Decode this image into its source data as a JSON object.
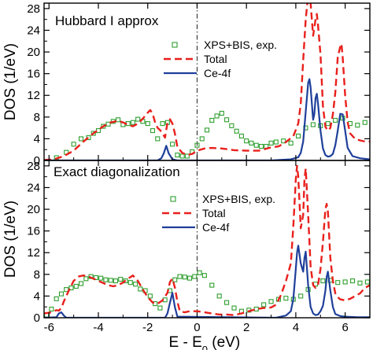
{
  "colors": {
    "exp": "#2e9e2e",
    "total": "#e8201c",
    "ce4f": "#1f3f9a"
  },
  "chart_data": [
    {
      "type": "line",
      "title": "Hubbard I approx",
      "xlabel": "E - E0 (eV)",
      "ylabel": "DOS (1/eV)",
      "xlim": [
        -6.2,
        7.0
      ],
      "ylim": [
        0,
        29
      ],
      "legend": [
        "XPS+BIS, exp.",
        "Total",
        "Ce-4f"
      ],
      "legend_position": "right",
      "series": [
        {
          "name": "XPS+BIS, exp.",
          "style": "open-square",
          "x": [
            -5.7,
            -5.3,
            -5.0,
            -4.7,
            -4.4,
            -4.2,
            -4.0,
            -3.8,
            -3.6,
            -3.4,
            -3.2,
            -3.0,
            -2.8,
            -2.6,
            -2.4,
            -2.2,
            -2.0,
            -1.8,
            -1.6,
            -1.4,
            -1.2,
            -1.0,
            -0.8,
            -0.6,
            -0.4,
            -0.2,
            0.0,
            0.2,
            0.4,
            0.6,
            0.8,
            1.0,
            1.2,
            1.4,
            1.6,
            1.8,
            2.0,
            2.2,
            2.4,
            2.6,
            2.8,
            3.0,
            3.2,
            3.5,
            3.8,
            4.1,
            4.4,
            4.7,
            5.0,
            5.3,
            5.6,
            5.9,
            6.2,
            6.5,
            6.8
          ],
          "y": [
            0.5,
            1.5,
            3.0,
            4.0,
            4.2,
            5.0,
            5.5,
            6.3,
            6.7,
            7.2,
            7.5,
            6.6,
            6.8,
            7.0,
            7.6,
            7.2,
            6.8,
            5.5,
            4.0,
            6.8,
            7.0,
            3.0,
            1.0,
            0.8,
            0.8,
            1.6,
            2.8,
            4.0,
            5.6,
            7.4,
            8.2,
            8.7,
            7.5,
            6.4,
            5.4,
            4.5,
            3.6,
            3.2,
            2.8,
            2.6,
            2.6,
            3.2,
            3.4,
            3.6,
            3.2,
            4.5,
            6.0,
            6.6,
            6.4,
            6.8,
            7.4,
            7.8,
            6.8,
            6.5,
            7.0
          ]
        },
        {
          "name": "Total",
          "style": "dashed",
          "x": [
            -6.2,
            -5.8,
            -5.4,
            -5.0,
            -4.6,
            -4.2,
            -3.8,
            -3.5,
            -3.2,
            -3.0,
            -2.8,
            -2.6,
            -2.4,
            -2.2,
            -2.0,
            -1.9,
            -1.8,
            -1.7,
            -1.6,
            -1.5,
            -1.4,
            -1.3,
            -1.2,
            -1.1,
            -1.0,
            -0.9,
            -0.8,
            -0.6,
            -0.4,
            -0.2,
            0.0,
            0.3,
            0.6,
            1.0,
            1.5,
            2.0,
            2.5,
            3.0,
            3.3,
            3.6,
            3.9,
            4.1,
            4.2,
            4.3,
            4.4,
            4.5,
            4.55,
            4.6,
            4.7,
            4.8,
            4.85,
            4.9,
            5.0,
            5.1,
            5.2,
            5.3,
            5.4,
            5.5,
            5.6,
            5.7,
            5.8,
            5.85,
            5.9,
            6.0,
            6.1,
            6.2,
            6.4,
            6.6,
            6.8,
            7.0
          ],
          "y": [
            0.1,
            0.2,
            0.8,
            1.8,
            3.5,
            5.0,
            6.3,
            7.0,
            7.3,
            7.0,
            6.6,
            6.3,
            6.8,
            7.7,
            8.8,
            9.3,
            8.6,
            7.0,
            6.0,
            5.6,
            5.0,
            4.2,
            7.0,
            7.6,
            6.8,
            5.0,
            2.5,
            1.4,
            1.0,
            1.2,
            1.8,
            2.2,
            2.3,
            2.2,
            1.9,
            1.8,
            1.8,
            2.4,
            2.6,
            3.4,
            4.5,
            6.8,
            10.5,
            18.5,
            26.0,
            30.5,
            32.0,
            29.0,
            23.0,
            26.0,
            27.0,
            25.0,
            19.5,
            10.0,
            6.2,
            5.5,
            6.0,
            8.5,
            12.5,
            19.0,
            21.0,
            21.5,
            19.0,
            12.0,
            7.0,
            5.0,
            4.0,
            3.7,
            3.5,
            3.5
          ]
        },
        {
          "name": "Ce-4f",
          "style": "solid",
          "x": [
            -6.2,
            -1.6,
            -1.45,
            -1.35,
            -1.25,
            -1.15,
            -1.0,
            -0.8,
            3.0,
            3.8,
            4.1,
            4.2,
            4.3,
            4.4,
            4.5,
            4.55,
            4.6,
            4.7,
            4.75,
            4.8,
            4.85,
            4.9,
            5.0,
            5.1,
            5.2,
            5.3,
            5.4,
            5.5,
            5.6,
            5.7,
            5.8,
            5.9,
            6.0,
            6.1,
            6.3,
            6.6,
            7.0
          ],
          "y": [
            0.0,
            0.0,
            0.4,
            1.3,
            2.7,
            1.3,
            0.2,
            0.0,
            0.0,
            0.2,
            0.6,
            1.4,
            3.5,
            9.0,
            14.3,
            15.0,
            13.5,
            7.5,
            8.5,
            11.5,
            12.3,
            10.5,
            5.5,
            2.2,
            1.0,
            0.7,
            0.8,
            1.2,
            2.8,
            5.5,
            8.6,
            8.5,
            5.5,
            2.3,
            0.8,
            0.4,
            0.2
          ]
        }
      ]
    },
    {
      "type": "line",
      "title": "Exact diagonalization",
      "xlabel": "E - E0 (eV)",
      "ylabel": "DOS (1/eV)",
      "xlim": [
        -6.2,
        7.0
      ],
      "ylim": [
        0,
        29
      ],
      "legend": [
        "XPS+BIS, exp.",
        "Total",
        "Ce-4f"
      ],
      "legend_position": "right",
      "series": [
        {
          "name": "XPS+BIS, exp.",
          "style": "open-square",
          "x": [
            -6.1,
            -5.9,
            -5.7,
            -5.5,
            -5.3,
            -5.1,
            -4.9,
            -4.7,
            -4.5,
            -4.3,
            -4.1,
            -3.9,
            -3.7,
            -3.5,
            -3.3,
            -3.1,
            -2.9,
            -2.7,
            -2.5,
            -2.3,
            -2.1,
            -1.9,
            -1.7,
            -1.5,
            -1.3,
            -1.1,
            -0.9,
            -0.7,
            -0.5,
            -0.3,
            -0.1,
            0.1,
            0.3,
            0.6,
            0.9,
            1.2,
            1.5,
            1.8,
            2.1,
            2.4,
            2.7,
            3.0,
            3.3,
            3.6,
            3.9,
            4.2,
            4.5,
            4.8,
            5.1,
            5.4,
            5.7,
            6.0,
            6.3,
            6.6,
            6.9
          ],
          "y": [
            0.5,
            1.6,
            3.5,
            4.4,
            5.2,
            5.5,
            5.8,
            6.3,
            7.2,
            7.6,
            7.4,
            7.3,
            7.0,
            6.9,
            6.8,
            7.1,
            6.8,
            6.5,
            6.2,
            5.3,
            5.0,
            4.0,
            2.6,
            1.8,
            3.3,
            5.0,
            7.0,
            7.6,
            7.5,
            7.3,
            7.6,
            8.3,
            7.8,
            6.0,
            4.0,
            2.8,
            1.8,
            1.2,
            1.4,
            1.6,
            2.4,
            3.0,
            3.4,
            3.6,
            3.4,
            4.0,
            5.2,
            6.2,
            6.8,
            6.9,
            6.5,
            6.6,
            6.8,
            6.4,
            6.6
          ]
        },
        {
          "name": "Total",
          "style": "dashed",
          "x": [
            -6.2,
            -5.9,
            -5.7,
            -5.6,
            -5.5,
            -5.4,
            -5.2,
            -5.0,
            -4.8,
            -4.6,
            -4.4,
            -4.2,
            -4.0,
            -3.8,
            -3.6,
            -3.4,
            -3.2,
            -3.0,
            -2.8,
            -2.6,
            -2.4,
            -2.2,
            -2.0,
            -1.8,
            -1.6,
            -1.4,
            -1.2,
            -1.1,
            -1.0,
            -0.9,
            -0.8,
            -0.7,
            -0.5,
            -0.3,
            0.0,
            0.3,
            0.6,
            0.9,
            1.2,
            1.5,
            1.8,
            2.1,
            2.4,
            2.7,
            3.0,
            3.2,
            3.4,
            3.6,
            3.8,
            3.9,
            4.0,
            4.05,
            4.1,
            4.2,
            4.3,
            4.35,
            4.4,
            4.5,
            4.6,
            4.7,
            4.8,
            4.9,
            5.0,
            5.1,
            5.2,
            5.25,
            5.3,
            5.4,
            5.5,
            5.6,
            5.7,
            5.8,
            6.0,
            6.2,
            6.4,
            6.6,
            6.8,
            7.0
          ],
          "y": [
            0.8,
            1.0,
            1.4,
            1.3,
            1.8,
            3.0,
            5.0,
            6.8,
            7.6,
            7.8,
            7.6,
            7.2,
            6.8,
            6.4,
            6.0,
            5.8,
            6.0,
            6.5,
            7.2,
            7.8,
            6.8,
            5.2,
            3.8,
            2.8,
            2.6,
            3.2,
            4.6,
            6.6,
            7.2,
            5.6,
            3.0,
            1.2,
            1.0,
            1.2,
            1.2,
            1.0,
            0.8,
            0.6,
            0.6,
            0.5,
            0.8,
            1.2,
            1.6,
            1.8,
            1.9,
            2.4,
            4.2,
            6.8,
            10.0,
            17.0,
            25.5,
            28.0,
            26.0,
            16.5,
            19.0,
            25.5,
            27.5,
            19.0,
            9.5,
            6.0,
            5.5,
            6.0,
            9.0,
            14.0,
            20.0,
            21.0,
            19.5,
            11.0,
            6.8,
            4.5,
            3.8,
            3.4,
            3.2,
            3.5,
            4.0,
            4.5,
            5.5,
            6.0
          ]
        },
        {
          "name": "Ce-4f",
          "style": "solid",
          "x": [
            -6.2,
            -5.7,
            -5.6,
            -5.5,
            -5.4,
            -5.3,
            -4.8,
            -1.3,
            -1.2,
            -1.1,
            -1.0,
            -0.9,
            -0.8,
            3.2,
            3.6,
            3.8,
            3.9,
            4.0,
            4.05,
            4.1,
            4.2,
            4.3,
            4.35,
            4.4,
            4.5,
            4.6,
            4.7,
            4.8,
            4.9,
            5.0,
            5.1,
            5.2,
            5.25,
            5.3,
            5.4,
            5.5,
            5.6,
            5.8,
            6.0,
            6.5,
            7.0
          ],
          "y": [
            0.0,
            0.1,
            0.8,
            1.0,
            0.4,
            0.0,
            0.0,
            0.0,
            0.8,
            2.8,
            4.6,
            2.0,
            0.2,
            0.0,
            0.4,
            1.2,
            3.5,
            9.0,
            12.0,
            13.3,
            10.0,
            8.5,
            11.0,
            12.2,
            6.0,
            2.0,
            0.8,
            0.5,
            0.6,
            1.2,
            2.2,
            5.0,
            7.5,
            8.5,
            5.0,
            2.0,
            0.7,
            0.3,
            0.2,
            0.1,
            0.1
          ]
        }
      ]
    }
  ]
}
